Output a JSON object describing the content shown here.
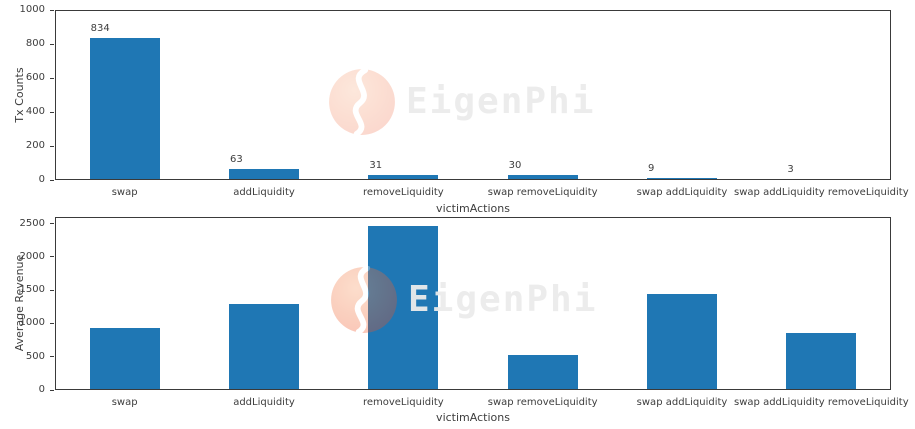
{
  "watermark": {
    "text": "EigenPhi",
    "logo": "eigenphi-flame-logo",
    "logo_colors": [
      "#ef4e23",
      "#f6921e"
    ],
    "text_color": "#ececec"
  },
  "chart_data": [
    {
      "type": "bar",
      "categories": [
        "swap",
        "addLiquidity",
        "removeLiquidity",
        "swap removeLiquidity",
        "swap addLiquidity",
        "swap addLiquidity removeLiquidity"
      ],
      "values": [
        834,
        63,
        31,
        30,
        9,
        3
      ],
      "bar_labels": [
        "834",
        "63",
        "31",
        "30",
        "9",
        "3"
      ],
      "xlabel": "victimActions",
      "ylabel": "Tx Counts",
      "yticks": [
        0,
        200,
        400,
        600,
        800,
        1000
      ],
      "ylim": [
        0,
        1000
      ],
      "bar_color": "#1f77b4",
      "grid": false,
      "legend": "none"
    },
    {
      "type": "bar",
      "categories": [
        "swap",
        "addLiquidity",
        "removeLiquidity",
        "swap removeLiquidity",
        "swap addLiquidity",
        "swap addLiquidity removeLiquidity"
      ],
      "values": [
        930,
        1300,
        2470,
        520,
        1450,
        860
      ],
      "xlabel": "victimActions",
      "ylabel": "Average Revenue",
      "yticks": [
        0,
        500,
        1000,
        1500,
        2000,
        2500
      ],
      "ylim": [
        0,
        2600
      ],
      "bar_color": "#1f77b4",
      "grid": false,
      "legend": "none"
    }
  ]
}
